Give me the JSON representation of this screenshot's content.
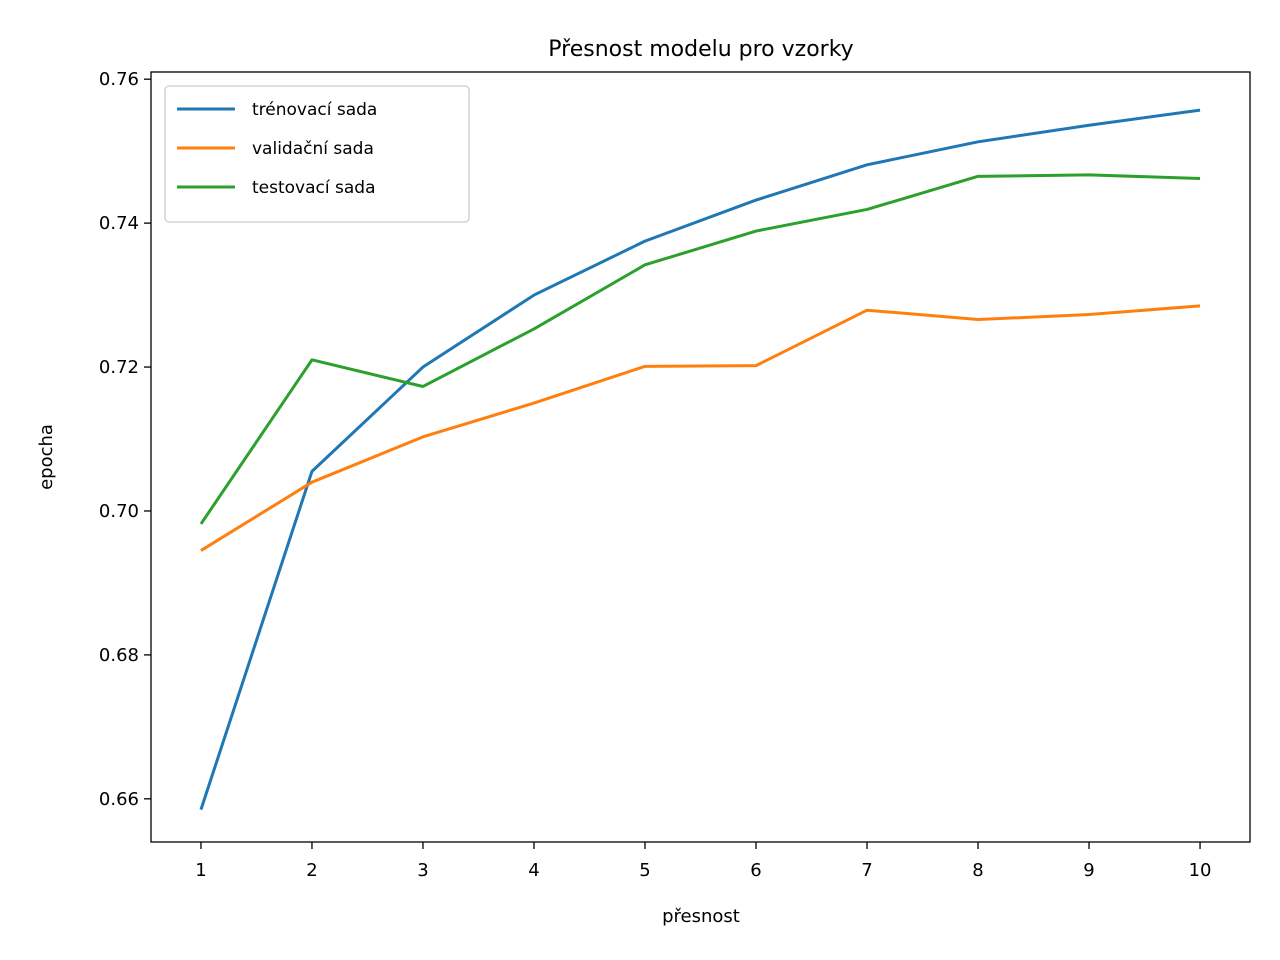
{
  "chart_data": {
    "type": "line",
    "title": "Přesnost modelu pro vzorky",
    "xlabel": "přesnost",
    "ylabel": "epocha",
    "x": [
      1,
      2,
      3,
      4,
      5,
      6,
      7,
      8,
      9,
      10
    ],
    "xlim": [
      0.55,
      10.45
    ],
    "ylim": [
      0.654,
      0.761
    ],
    "xticks": [
      1,
      2,
      3,
      4,
      5,
      6,
      7,
      8,
      9,
      10
    ],
    "xtick_labels": [
      "1",
      "2",
      "3",
      "4",
      "5",
      "6",
      "7",
      "8",
      "9",
      "10"
    ],
    "yticks": [
      0.66,
      0.68,
      0.7,
      0.72,
      0.74,
      0.76
    ],
    "ytick_labels": [
      "0.66",
      "0.68",
      "0.70",
      "0.72",
      "0.74",
      "0.76"
    ],
    "grid": false,
    "legend_position": "top-left",
    "series": [
      {
        "name": "trénovací sada",
        "color": "#1f77b4",
        "values": [
          0.6585,
          0.7055,
          0.72,
          0.73,
          0.7375,
          0.7432,
          0.7481,
          0.7513,
          0.7536,
          0.7557
        ]
      },
      {
        "name": "validační sada",
        "color": "#ff7f0e",
        "values": [
          0.6945,
          0.704,
          0.7103,
          0.715,
          0.7201,
          0.7202,
          0.7279,
          0.7266,
          0.7273,
          0.7285
        ]
      },
      {
        "name": "testovací sada",
        "color": "#2ca02c",
        "values": [
          0.6982,
          0.721,
          0.7173,
          0.7253,
          0.7342,
          0.7389,
          0.7419,
          0.7465,
          0.7467,
          0.7462
        ]
      }
    ]
  }
}
